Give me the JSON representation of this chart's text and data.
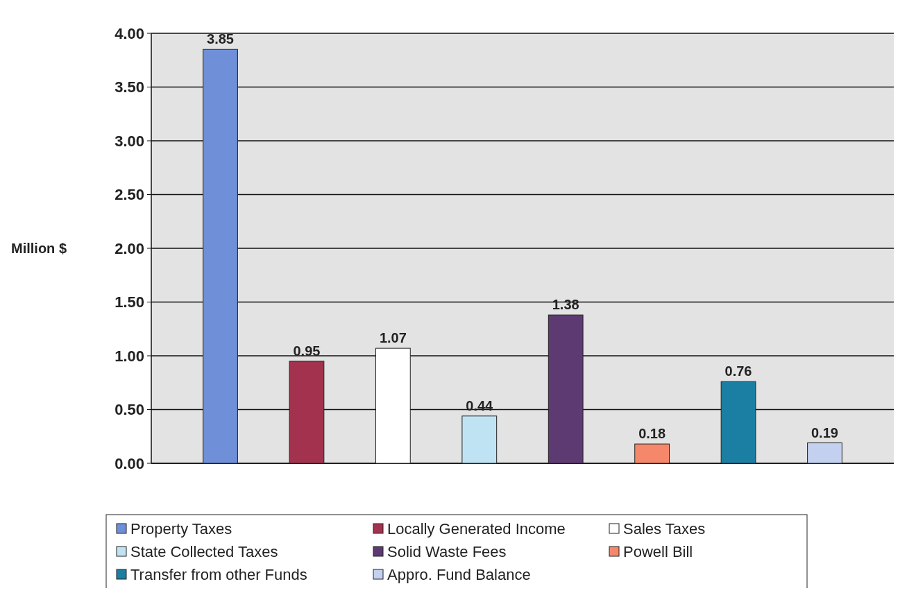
{
  "chart_data": {
    "type": "bar",
    "ylabel": "Million $",
    "categories": [
      null,
      null,
      null,
      null,
      null,
      null,
      null,
      null
    ],
    "series": [
      {
        "name": "Property Taxes",
        "color": "#6f8fd8",
        "values": [
          3.85,
          null,
          null,
          null,
          null,
          null,
          null,
          null
        ]
      },
      {
        "name": "Locally Generated Income",
        "color": "#a3324f",
        "values": [
          null,
          0.95,
          null,
          null,
          null,
          null,
          null,
          null
        ]
      },
      {
        "name": "Sales Taxes",
        "color": "#ffffff",
        "values": [
          null,
          null,
          1.07,
          null,
          null,
          null,
          null,
          null
        ]
      },
      {
        "name": "State Collected Taxes",
        "color": "#bfe3f2",
        "values": [
          null,
          null,
          null,
          0.44,
          null,
          null,
          null,
          null
        ]
      },
      {
        "name": "Solid Waste Fees",
        "color": "#5e3a73",
        "values": [
          null,
          null,
          null,
          null,
          1.38,
          null,
          null,
          null
        ]
      },
      {
        "name": "Powell Bill",
        "color": "#f5876b",
        "values": [
          null,
          null,
          null,
          null,
          null,
          0.18,
          null,
          null
        ]
      },
      {
        "name": "Transfer from other Funds",
        "color": "#1b7fa3",
        "values": [
          null,
          null,
          null,
          null,
          null,
          null,
          0.76,
          null
        ]
      },
      {
        "name": "Appro. Fund Balance",
        "color": "#c3d0ef",
        "values": [
          null,
          null,
          null,
          null,
          null,
          null,
          null,
          0.19
        ]
      }
    ],
    "ylim": [
      0,
      4
    ],
    "yticks": [
      {
        "value": 0,
        "label": "0.00"
      },
      {
        "value": 0.5,
        "label": "0.50"
      },
      {
        "value": 1,
        "label": "1.00"
      },
      {
        "value": 1.5,
        "label": "1.50"
      },
      {
        "value": 2,
        "label": "2.00"
      },
      {
        "value": 2.5,
        "label": "2.50"
      },
      {
        "value": 3,
        "label": "3.00"
      },
      {
        "value": 3.5,
        "label": "3.50"
      },
      {
        "value": 4,
        "label": "4.00"
      }
    ],
    "grid": "y",
    "data_labels": true,
    "legend": "bottom"
  }
}
